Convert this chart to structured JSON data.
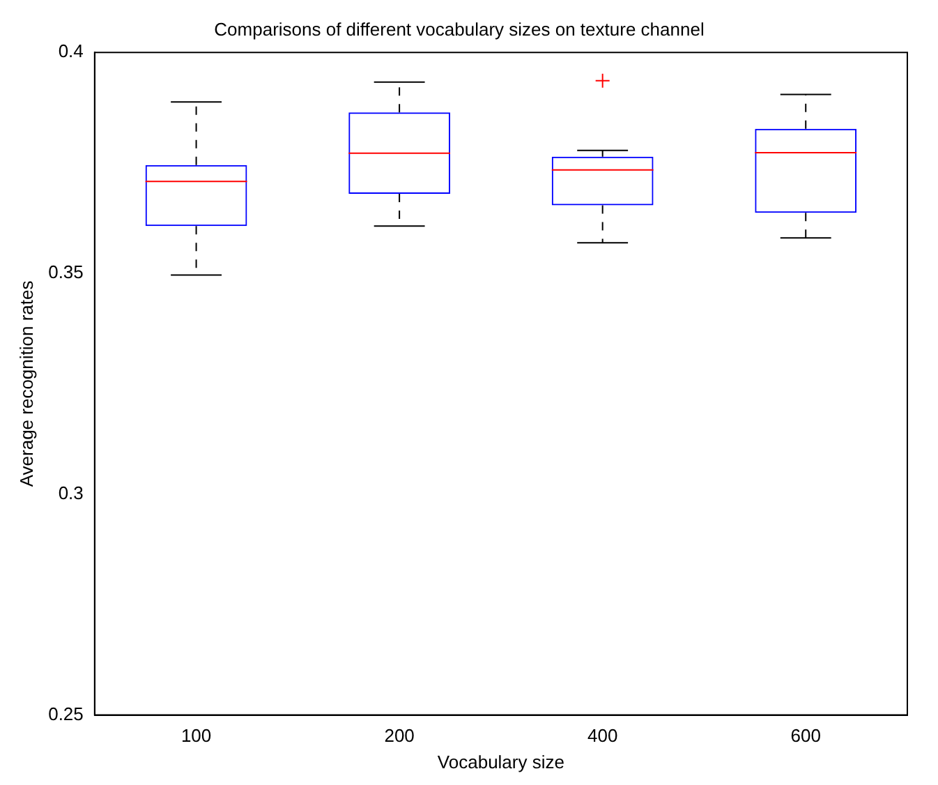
{
  "chart_data": {
    "type": "box",
    "title": "Comparisons of different vocabulary sizes on texture channel",
    "xlabel": "Vocabulary size",
    "ylabel": "Average recognition rates",
    "categories": [
      "100",
      "200",
      "400",
      "600"
    ],
    "ylim": [
      0.25,
      0.4
    ],
    "yticks": [
      0.25,
      0.3,
      0.35,
      0.4
    ],
    "grid": false,
    "legend": false,
    "series": [
      {
        "color": "#0000ff",
        "boxes": [
          {
            "low": 0.3496,
            "q1": 0.3607,
            "median": 0.3708,
            "q3": 0.3745,
            "high": 0.3888
          },
          {
            "low": 0.3607,
            "q1": 0.368,
            "median": 0.3772,
            "q3": 0.3864,
            "high": 0.3933
          },
          {
            "low": 0.3569,
            "q1": 0.3654,
            "median": 0.3734,
            "q3": 0.3764,
            "high": 0.3778,
            "outliers": [
              0.3936
            ]
          },
          {
            "low": 0.358,
            "q1": 0.3637,
            "median": 0.3773,
            "q3": 0.3827,
            "high": 0.3905
          }
        ]
      }
    ]
  }
}
